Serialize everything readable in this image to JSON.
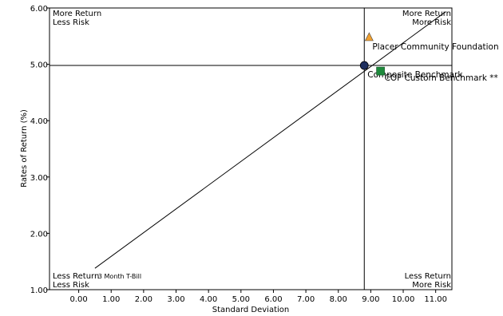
{
  "chart_data": {
    "type": "scatter",
    "xlabel": "Standard Deviation",
    "ylabel": "Rates of Return (%)",
    "xlim": [
      -0.9,
      11.5
    ],
    "ylim": [
      1.0,
      6.0
    ],
    "x_ticks": [
      "0.00",
      "1.00",
      "2.00",
      "3.00",
      "4.00",
      "5.00",
      "6.00",
      "7.00",
      "8.00",
      "9.00",
      "10.00",
      "11.00"
    ],
    "y_ticks": [
      "1.00",
      "2.00",
      "3.00",
      "4.00",
      "5.00",
      "6.00"
    ],
    "quadrants": {
      "top_left": [
        "More Return",
        "Less Risk"
      ],
      "top_right": [
        "More Return",
        "More Risk"
      ],
      "bottom_left": [
        "Less Return",
        "Less Risk"
      ],
      "bottom_right": [
        "Less Return",
        "More Risk"
      ]
    },
    "reference_lines": {
      "x": 8.8,
      "y": 4.98
    },
    "capital_market_line": {
      "x": [
        0.5,
        11.3
      ],
      "y": [
        1.38,
        5.93
      ]
    },
    "points": [
      {
        "label": "Placer Community Foundation",
        "x": 8.95,
        "y": 5.49,
        "marker": "triangle",
        "color": "#f0a030"
      },
      {
        "label": "Composite Benchmark",
        "x": 8.8,
        "y": 4.98,
        "marker": "circle",
        "color": "#1f2f5f"
      },
      {
        "label": "COF Custom Benchmark **",
        "x": 9.3,
        "y": 4.88,
        "marker": "square",
        "color": "#1e8a3c"
      },
      {
        "label": "3 Month T-Bill",
        "x": 0.5,
        "y": 1.38,
        "marker": "none",
        "color": "#000000"
      }
    ]
  }
}
